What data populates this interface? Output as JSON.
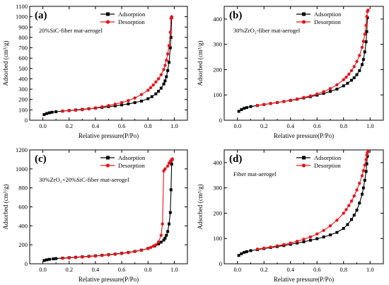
{
  "chart_data": [
    {
      "type": "line",
      "panel_label": "(a)",
      "annotation": "20%SiC-fiber mat-aerogel",
      "xlabel": "Relative pressure(P/Po)",
      "ylabel": "Adsorbed (cm³/g)",
      "xlim": [
        -0.1,
        1.1
      ],
      "ylim": [
        0,
        1100
      ],
      "xticks": [
        0.0,
        0.2,
        0.4,
        0.6,
        0.8,
        1.0
      ],
      "yticks": [
        0,
        100,
        200,
        300,
        400,
        500,
        600,
        700,
        800,
        900,
        1000,
        1100
      ],
      "xtick_labels": [
        "0.0",
        "0.2",
        "0.4",
        "0.6",
        "0.8",
        "1.0"
      ],
      "ytick_labels": [
        "0",
        "100",
        "200",
        "300",
        "400",
        "500",
        "600",
        "700",
        "800",
        "900",
        "1000",
        "1100"
      ],
      "legend_position": "top-right",
      "series": [
        {
          "name": "Adsorption",
          "color": "#000000",
          "marker": "square",
          "x": [
            0.01,
            0.03,
            0.05,
            0.07,
            0.1,
            0.15,
            0.2,
            0.25,
            0.3,
            0.35,
            0.4,
            0.45,
            0.5,
            0.55,
            0.6,
            0.65,
            0.7,
            0.75,
            0.8,
            0.83,
            0.86,
            0.88,
            0.9,
            0.92,
            0.93,
            0.94,
            0.95,
            0.96,
            0.97,
            0.975,
            0.98
          ],
          "y": [
            55,
            65,
            72,
            77,
            82,
            88,
            94,
            99,
            105,
            111,
            117,
            124,
            131,
            139,
            148,
            158,
            170,
            185,
            208,
            228,
            255,
            280,
            310,
            350,
            380,
            420,
            480,
            560,
            700,
            800,
            990
          ]
        },
        {
          "name": "Desorption",
          "color": "#e8141b",
          "marker": "circle",
          "x": [
            0.98,
            0.975,
            0.97,
            0.96,
            0.95,
            0.94,
            0.93,
            0.92,
            0.9,
            0.88,
            0.86,
            0.84,
            0.82,
            0.8,
            0.75,
            0.7,
            0.65,
            0.6,
            0.55,
            0.5,
            0.45,
            0.4,
            0.35,
            0.3,
            0.25,
            0.2,
            0.15
          ],
          "y": [
            1000,
            985,
            850,
            720,
            640,
            580,
            530,
            490,
            440,
            400,
            370,
            340,
            315,
            290,
            248,
            215,
            190,
            170,
            155,
            142,
            130,
            119,
            109,
            101,
            96,
            92,
            88
          ]
        }
      ]
    },
    {
      "type": "line",
      "panel_label": "(b)",
      "annotation": "30%ZrO₂-fiber mat-aerogel",
      "xlabel": "Relative pressure(P/Po)",
      "ylabel": "Adsorbed (cm³/g)",
      "xlim": [
        -0.1,
        1.1
      ],
      "ylim": [
        0,
        450
      ],
      "xticks": [
        0.0,
        0.2,
        0.4,
        0.6,
        0.8,
        1.0
      ],
      "yticks": [
        0,
        100,
        200,
        300,
        400
      ],
      "xtick_labels": [
        "0.0",
        "0.2",
        "0.4",
        "0.6",
        "0.8",
        "1.0"
      ],
      "ytick_labels": [
        "0",
        "100",
        "200",
        "300",
        "400"
      ],
      "legend_position": "top-right",
      "series": [
        {
          "name": "Adsorption",
          "color": "#000000",
          "marker": "square",
          "x": [
            0.01,
            0.03,
            0.05,
            0.07,
            0.1,
            0.15,
            0.2,
            0.25,
            0.3,
            0.35,
            0.4,
            0.45,
            0.5,
            0.55,
            0.6,
            0.65,
            0.7,
            0.75,
            0.8,
            0.83,
            0.86,
            0.88,
            0.9,
            0.92,
            0.94,
            0.95,
            0.96,
            0.97,
            0.975,
            0.98
          ],
          "y": [
            35,
            42,
            47,
            50,
            54,
            58,
            62,
            66,
            70,
            74,
            78,
            83,
            88,
            93,
            99,
            106,
            114,
            123,
            136,
            146,
            158,
            168,
            180,
            196,
            220,
            240,
            270,
            310,
            350,
            405
          ]
        },
        {
          "name": "Desorption",
          "color": "#e8141b",
          "marker": "circle",
          "x": [
            0.985,
            0.98,
            0.975,
            0.97,
            0.96,
            0.95,
            0.94,
            0.92,
            0.9,
            0.88,
            0.86,
            0.84,
            0.82,
            0.8,
            0.75,
            0.7,
            0.65,
            0.6,
            0.55,
            0.5,
            0.45,
            0.4,
            0.35,
            0.3,
            0.25,
            0.2,
            0.15
          ],
          "y": [
            435,
            430,
            410,
            375,
            340,
            312,
            288,
            256,
            232,
            212,
            196,
            182,
            170,
            160,
            140,
            125,
            113,
            104,
            96,
            90,
            84,
            79,
            74,
            70,
            66,
            62,
            58
          ]
        }
      ]
    },
    {
      "type": "line",
      "panel_label": "(c)",
      "annotation": "30%ZrO₂+20%SiC-fiber mat-aerogel",
      "xlabel": "Relative pressure(P/Po)",
      "ylabel": "Adsorbed (cm³/g)",
      "xlim": [
        -0.1,
        1.1
      ],
      "ylim": [
        0,
        1200
      ],
      "xticks": [
        0.0,
        0.2,
        0.4,
        0.6,
        0.8,
        1.0
      ],
      "yticks": [
        0,
        200,
        400,
        600,
        800,
        1000,
        1200
      ],
      "xtick_labels": [
        "0.0",
        "0.2",
        "0.4",
        "0.6",
        "0.8",
        "1.0"
      ],
      "ytick_labels": [
        "0",
        "200",
        "400",
        "600",
        "800",
        "1000",
        "1200"
      ],
      "legend_position": "top-right",
      "series": [
        {
          "name": "Adsorption",
          "color": "#000000",
          "marker": "square",
          "x": [
            0.01,
            0.03,
            0.05,
            0.08,
            0.1,
            0.15,
            0.2,
            0.25,
            0.3,
            0.35,
            0.4,
            0.45,
            0.5,
            0.55,
            0.6,
            0.65,
            0.7,
            0.75,
            0.8,
            0.85,
            0.88,
            0.9,
            0.92,
            0.93,
            0.94,
            0.95,
            0.96,
            0.97,
            0.975,
            0.98,
            0.985
          ],
          "y": [
            35,
            42,
            47,
            52,
            55,
            60,
            65,
            69,
            74,
            79,
            84,
            90,
            96,
            103,
            111,
            120,
            131,
            144,
            162,
            188,
            210,
            228,
            250,
            270,
            300,
            340,
            420,
            540,
            780,
            1050,
            1100
          ]
        },
        {
          "name": "Desorption",
          "color": "#e8141b",
          "marker": "circle",
          "x": [
            0.985,
            0.98,
            0.97,
            0.96,
            0.95,
            0.93,
            0.92,
            0.91,
            0.9,
            0.88,
            0.86,
            0.84,
            0.82,
            0.8,
            0.75,
            0.7,
            0.65,
            0.6,
            0.55,
            0.5,
            0.45,
            0.4,
            0.35,
            0.3,
            0.25,
            0.2,
            0.15
          ],
          "y": [
            1105,
            1100,
            1080,
            1060,
            1030,
            1000,
            980,
            420,
            300,
            230,
            200,
            185,
            172,
            160,
            142,
            128,
            117,
            108,
            100,
            93,
            87,
            81,
            76,
            71,
            66,
            62,
            57
          ]
        }
      ]
    },
    {
      "type": "line",
      "panel_label": "(d)",
      "annotation": "Fiber mat-aerogel",
      "xlabel": "Relative pressure(P/Po)",
      "ylabel": "Adsorbed (cm³/g)",
      "xlim": [
        -0.1,
        1.1
      ],
      "ylim": [
        0,
        450
      ],
      "xticks": [
        0.0,
        0.2,
        0.4,
        0.6,
        0.8,
        1.0
      ],
      "yticks": [
        0,
        100,
        200,
        300,
        400
      ],
      "xtick_labels": [
        "0.0",
        "0.2",
        "0.4",
        "0.6",
        "0.8",
        "1.0"
      ],
      "ytick_labels": [
        "0",
        "100",
        "200",
        "300",
        "400"
      ],
      "legend_position": "top-right",
      "series": [
        {
          "name": "Adsorption",
          "color": "#000000",
          "marker": "square",
          "x": [
            0.01,
            0.03,
            0.05,
            0.07,
            0.1,
            0.15,
            0.2,
            0.25,
            0.3,
            0.35,
            0.4,
            0.45,
            0.5,
            0.55,
            0.6,
            0.65,
            0.7,
            0.75,
            0.8,
            0.83,
            0.86,
            0.88,
            0.9,
            0.92,
            0.94,
            0.95,
            0.96,
            0.97,
            0.975,
            0.98
          ],
          "y": [
            33,
            40,
            45,
            48,
            52,
            56,
            60,
            64,
            68,
            72,
            77,
            82,
            87,
            93,
            99,
            106,
            114,
            124,
            140,
            155,
            175,
            192,
            212,
            240,
            275,
            300,
            330,
            365,
            395,
            425
          ]
        },
        {
          "name": "Desorption",
          "color": "#e8141b",
          "marker": "circle",
          "x": [
            0.985,
            0.98,
            0.975,
            0.97,
            0.96,
            0.95,
            0.94,
            0.92,
            0.9,
            0.88,
            0.86,
            0.84,
            0.82,
            0.8,
            0.75,
            0.7,
            0.65,
            0.6,
            0.55,
            0.5,
            0.45,
            0.4,
            0.35,
            0.3,
            0.25,
            0.2,
            0.15
          ],
          "y": [
            443,
            440,
            430,
            412,
            390,
            368,
            348,
            318,
            292,
            268,
            248,
            230,
            214,
            200,
            172,
            150,
            132,
            118,
            106,
            97,
            89,
            82,
            76,
            71,
            66,
            62,
            58
          ]
        }
      ]
    }
  ]
}
